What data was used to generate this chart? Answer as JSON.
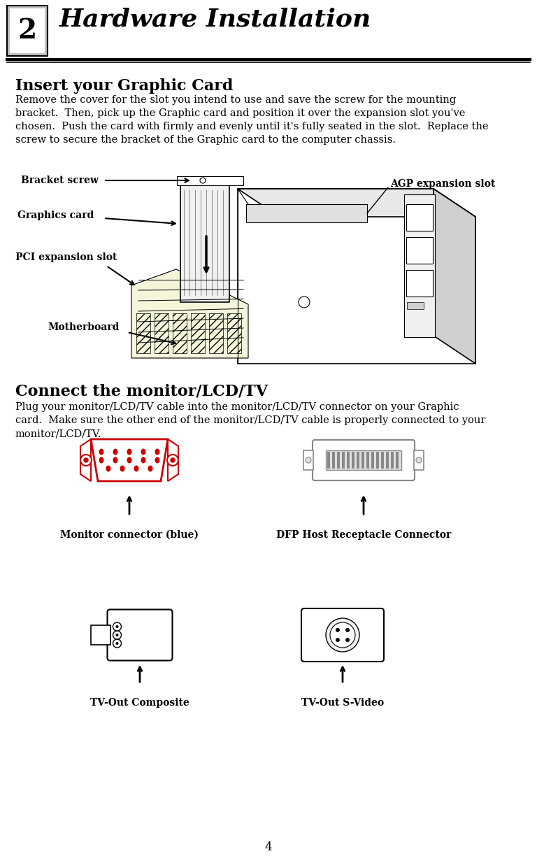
{
  "page_title": "Hardware Installation",
  "page_number": "2",
  "page_num_bottom": "4",
  "bg_color": "#ffffff",
  "text_color": "#000000",
  "section1_heading": "Insert your Graphic Card",
  "section1_body": "Remove the cover for the slot you intend to use and save the screw for the mounting\nbracket.  Then, pick up the Graphic card and position it over the expansion slot you've\nchosen.  Push the card with firmly and evenly until it's fully seated in the slot.  Replace the\nscrew to secure the bracket of the Graphic card to the computer chassis.",
  "section2_heading": "Connect the monitor/LCD/TV",
  "section2_body": "Plug your monitor/LCD/TV cable into the monitor/LCD/TV connector on your Graphic\ncard.  Make sure the other end of the monitor/LCD/TV cable is properly connected to your\nmonitor/LCD/TV.",
  "diagram1_labels": {
    "bracket_screw": "Bracket screw",
    "graphics_card": "Graphics card",
    "pci_expansion": "PCI expansion slot",
    "motherboard": "Motherboard",
    "agp_expansion": "AGP expansion slot"
  },
  "diagram2_labels": {
    "monitor_connector": "Monitor connector (blue)",
    "dfp_connector": "DFP Host Receptacle Connector",
    "tv_composite": "TV-Out Composite",
    "tv_svideo": "TV-Out S-Video"
  },
  "header_line_color": "#000000",
  "red_color": "#cc0000",
  "gray_color": "#888888",
  "light_gray": "#cccccc"
}
